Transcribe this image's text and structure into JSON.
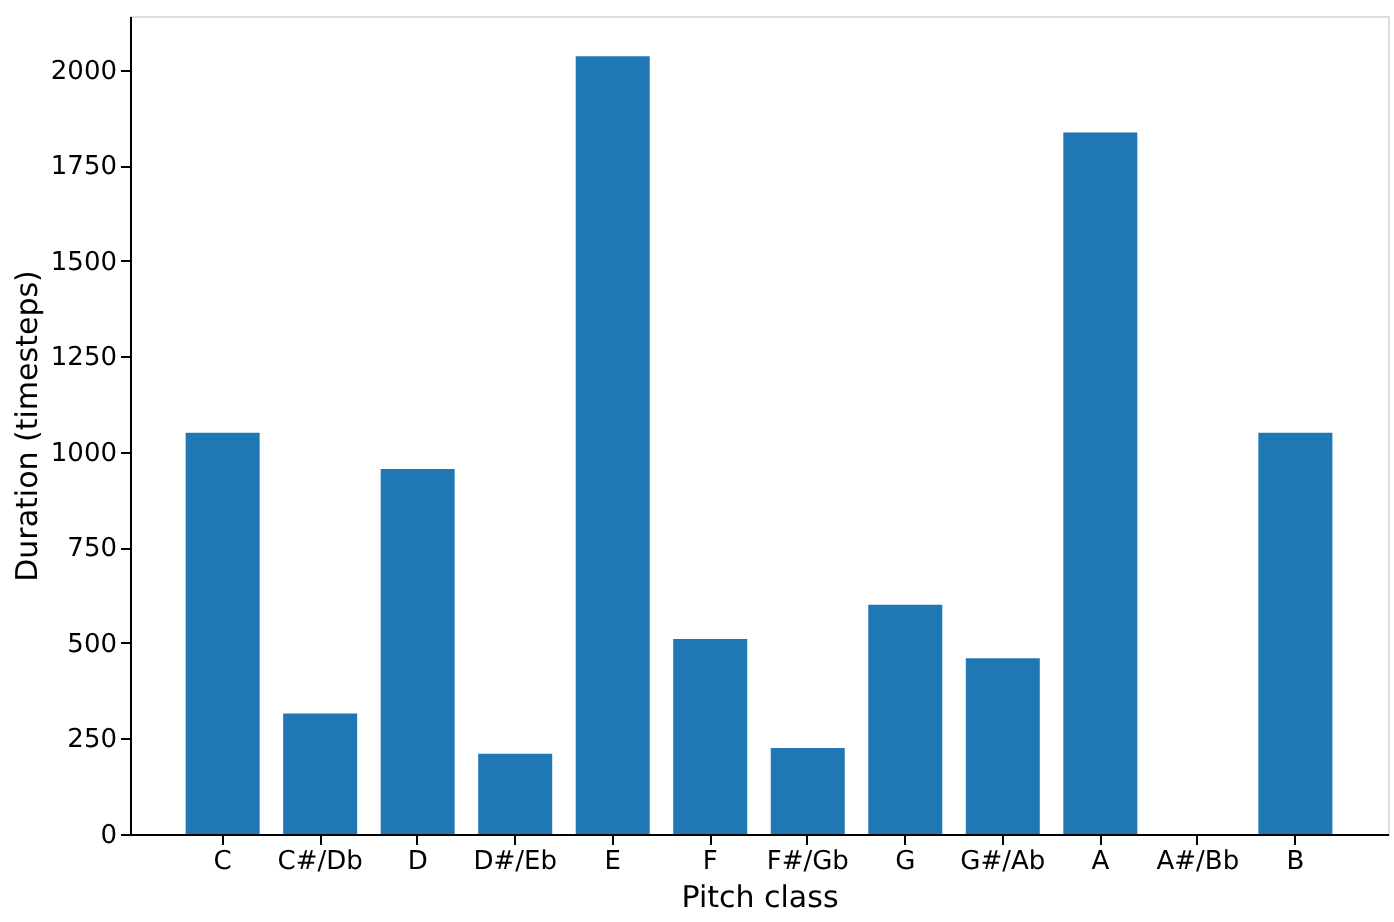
{
  "chart_data": {
    "type": "bar",
    "xlabel": "Pitch class",
    "ylabel": "Duration (timesteps)",
    "categories": [
      "C",
      "C#/Db",
      "D",
      "D#/Eb",
      "E",
      "F",
      "F#/Gb",
      "G",
      "G#/Ab",
      "A",
      "A#/Bb",
      "B"
    ],
    "values": [
      1050,
      315,
      955,
      210,
      2035,
      510,
      225,
      600,
      460,
      1835,
      0,
      1050
    ],
    "color": "#1f77b4",
    "ylim": [
      0,
      2140
    ],
    "yticks": [
      0,
      250,
      500,
      750,
      1000,
      1250,
      1500,
      1750,
      2000
    ],
    "grid": false
  }
}
